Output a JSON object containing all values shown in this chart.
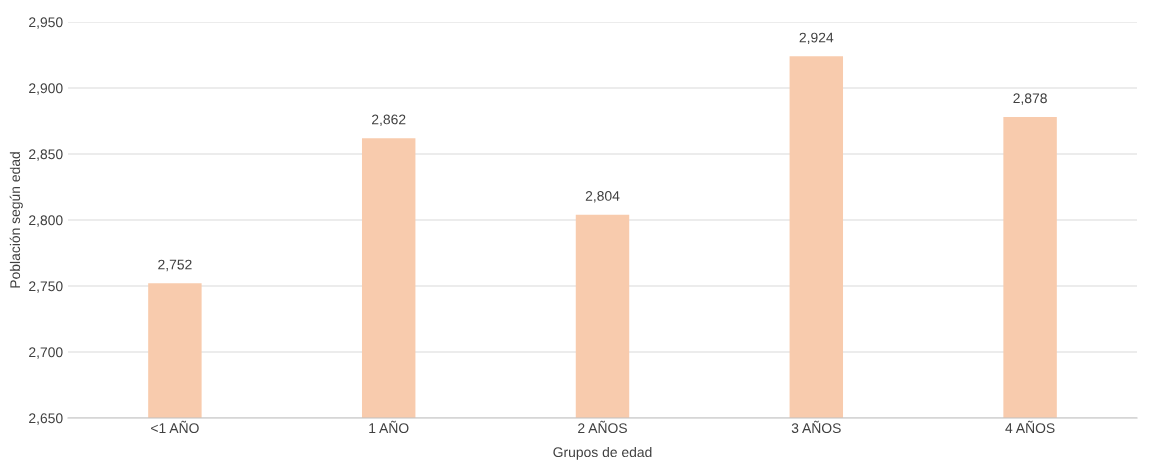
{
  "chart_data": {
    "type": "bar",
    "xlabel": "Grupos de edad",
    "ylabel": "Población según edad",
    "categories": [
      "<1 AÑO",
      "1 AÑO",
      "2 AÑOS",
      "3 AÑOS",
      "4 AÑOS"
    ],
    "values": [
      2752,
      2862,
      2804,
      2924,
      2878
    ],
    "value_labels": [
      "2,752",
      "2,862",
      "2,804",
      "2,924",
      "2,878"
    ],
    "color": "#f8cbad",
    "ylim": [
      2650,
      2950
    ],
    "yticks": [
      {
        "value": 2650,
        "label": "2,650"
      },
      {
        "value": 2700,
        "label": "2,700"
      },
      {
        "value": 2750,
        "label": "2,750"
      },
      {
        "value": 2800,
        "label": "2,800"
      },
      {
        "value": 2850,
        "label": "2,850"
      },
      {
        "value": 2900,
        "label": "2,900"
      },
      {
        "value": 2950,
        "label": "2,950"
      }
    ],
    "grid": "y",
    "legend": false
  }
}
